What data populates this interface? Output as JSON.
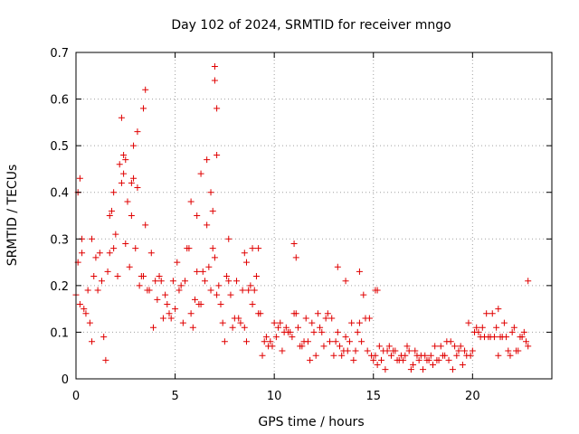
{
  "chart_data": {
    "type": "scatter",
    "title": "Day 102 of 2024, SRMTID for receiver mngo",
    "xlabel": "GPS time / hours",
    "ylabel": "SRMTID / TECUs",
    "xlim": [
      0,
      24
    ],
    "ylim": [
      0,
      0.7
    ],
    "xticks": [
      0,
      5,
      10,
      15,
      20
    ],
    "yticks": [
      0,
      0.1,
      0.2,
      0.3,
      0.4,
      0.5,
      0.6,
      0.7
    ],
    "xtick_labels": [
      "0",
      "5",
      "10",
      "15",
      "20"
    ],
    "ytick_labels": [
      "0",
      "0.1",
      "0.2",
      "0.3",
      "0.4",
      "0.5",
      "0.6",
      "0.7"
    ],
    "grid": true,
    "marker": "+",
    "color": "#e00000",
    "series": [
      {
        "name": "SRMTID",
        "x": [
          0.0,
          0.1,
          0.2,
          0.3,
          0.4,
          0.5,
          0.6,
          0.7,
          0.8,
          0.9,
          1.0,
          1.1,
          1.2,
          1.3,
          1.4,
          1.5,
          1.6,
          1.7,
          1.8,
          1.9,
          2.0,
          2.1,
          2.2,
          2.3,
          2.4,
          2.5,
          2.6,
          2.7,
          2.8,
          2.9,
          3.0,
          3.1,
          3.2,
          3.3,
          3.4,
          3.5,
          3.6,
          3.7,
          3.8,
          3.9,
          4.0,
          4.1,
          4.2,
          4.3,
          4.4,
          4.5,
          4.6,
          4.7,
          4.8,
          4.9,
          5.0,
          5.1,
          5.2,
          5.3,
          5.4,
          5.5,
          5.6,
          5.7,
          5.8,
          5.9,
          6.0,
          6.1,
          6.2,
          6.3,
          6.4,
          6.5,
          6.6,
          6.7,
          6.8,
          6.9,
          7.0,
          7.1,
          7.2,
          7.3,
          7.4,
          7.5,
          7.6,
          7.7,
          7.8,
          7.9,
          8.0,
          8.1,
          8.2,
          8.3,
          8.4,
          8.5,
          8.6,
          8.7,
          8.8,
          8.9,
          9.0,
          9.1,
          9.2,
          9.3,
          9.4,
          9.5,
          9.6,
          9.7,
          9.8,
          9.9,
          10.0,
          10.1,
          10.2,
          10.3,
          10.4,
          10.5,
          10.6,
          10.7,
          10.8,
          10.9,
          11.0,
          11.1,
          11.2,
          11.3,
          11.4,
          11.5,
          11.6,
          11.7,
          11.8,
          11.9,
          12.0,
          12.1,
          12.2,
          12.3,
          12.4,
          12.5,
          12.6,
          12.7,
          12.8,
          12.9,
          13.0,
          13.1,
          13.2,
          13.3,
          13.4,
          13.5,
          13.6,
          13.7,
          13.8,
          13.9,
          14.0,
          14.1,
          14.2,
          14.3,
          14.4,
          14.5,
          14.6,
          14.7,
          14.8,
          14.9,
          15.0,
          15.1,
          15.2,
          15.3,
          15.4,
          15.5,
          15.6,
          15.7,
          15.8,
          15.9,
          16.0,
          16.1,
          16.2,
          16.3,
          16.4,
          16.5,
          16.6,
          16.7,
          16.8,
          16.9,
          17.0,
          17.1,
          17.2,
          17.3,
          17.4,
          17.5,
          17.6,
          17.7,
          17.8,
          17.9,
          18.0,
          18.1,
          18.2,
          18.3,
          18.4,
          18.5,
          18.6,
          18.7,
          18.8,
          18.9,
          19.0,
          19.1,
          19.2,
          19.3,
          19.4,
          19.5,
          19.6,
          19.7,
          19.8,
          19.9,
          20.0,
          20.1,
          20.2,
          20.3,
          20.4,
          20.5,
          20.6,
          20.7,
          20.8,
          20.9,
          21.0,
          21.1,
          21.2,
          21.3,
          21.4,
          21.5,
          21.6,
          21.7,
          21.8,
          21.9,
          22.0,
          22.1,
          22.2,
          22.3,
          22.4,
          22.5,
          22.6,
          22.7,
          22.8,
          0.1,
          0.2,
          0.3,
          0.8,
          1.7,
          1.9,
          2.3,
          2.4,
          2.5,
          2.8,
          2.9,
          3.1,
          3.4,
          3.5,
          5.8,
          6.1,
          6.3,
          6.6,
          6.8,
          6.9,
          7.0,
          7.0,
          7.1,
          7.1,
          7.7,
          8.5,
          8.6,
          8.9,
          9.2,
          11.0,
          11.1,
          13.2,
          13.6,
          14.3,
          15.1,
          15.2,
          21.3,
          22.8
        ],
        "y": [
          0.18,
          0.25,
          0.16,
          0.27,
          0.15,
          0.14,
          0.19,
          0.12,
          0.08,
          0.22,
          0.26,
          0.19,
          0.27,
          0.21,
          0.09,
          0.04,
          0.23,
          0.27,
          0.36,
          0.28,
          0.31,
          0.22,
          0.46,
          0.42,
          0.44,
          0.29,
          0.38,
          0.24,
          0.35,
          0.43,
          0.28,
          0.41,
          0.2,
          0.22,
          0.22,
          0.33,
          0.19,
          0.19,
          0.27,
          0.11,
          0.21,
          0.17,
          0.22,
          0.21,
          0.13,
          0.18,
          0.16,
          0.14,
          0.13,
          0.21,
          0.15,
          0.25,
          0.19,
          0.2,
          0.12,
          0.21,
          0.28,
          0.28,
          0.14,
          0.11,
          0.17,
          0.23,
          0.16,
          0.16,
          0.23,
          0.21,
          0.33,
          0.24,
          0.19,
          0.36,
          0.26,
          0.18,
          0.2,
          0.16,
          0.12,
          0.08,
          0.22,
          0.21,
          0.18,
          0.11,
          0.13,
          0.21,
          0.13,
          0.12,
          0.19,
          0.11,
          0.08,
          0.19,
          0.2,
          0.16,
          0.19,
          0.22,
          0.14,
          0.14,
          0.05,
          0.08,
          0.09,
          0.07,
          0.08,
          0.07,
          0.12,
          0.09,
          0.11,
          0.12,
          0.06,
          0.1,
          0.11,
          0.1,
          0.1,
          0.09,
          0.14,
          0.14,
          0.11,
          0.07,
          0.07,
          0.08,
          0.13,
          0.08,
          0.04,
          0.12,
          0.1,
          0.05,
          0.14,
          0.11,
          0.1,
          0.07,
          0.13,
          0.14,
          0.08,
          0.13,
          0.05,
          0.08,
          0.1,
          0.07,
          0.05,
          0.06,
          0.09,
          0.06,
          0.08,
          0.12,
          0.04,
          0.06,
          0.1,
          0.12,
          0.08,
          0.18,
          0.13,
          0.06,
          0.13,
          0.05,
          0.04,
          0.05,
          0.03,
          0.07,
          0.04,
          0.06,
          0.02,
          0.06,
          0.07,
          0.05,
          0.06,
          0.06,
          0.04,
          0.04,
          0.05,
          0.04,
          0.05,
          0.07,
          0.06,
          0.02,
          0.03,
          0.06,
          0.05,
          0.04,
          0.05,
          0.02,
          0.05,
          0.04,
          0.04,
          0.05,
          0.03,
          0.07,
          0.04,
          0.04,
          0.07,
          0.05,
          0.05,
          0.08,
          0.04,
          0.08,
          0.02,
          0.07,
          0.05,
          0.06,
          0.07,
          0.03,
          0.06,
          0.05,
          0.12,
          0.05,
          0.06,
          0.1,
          0.11,
          0.1,
          0.09,
          0.11,
          0.09,
          0.14,
          0.09,
          0.09,
          0.14,
          0.09,
          0.11,
          0.05,
          0.09,
          0.09,
          0.12,
          0.09,
          0.06,
          0.05,
          0.1,
          0.11,
          0.06,
          0.06,
          0.09,
          0.09,
          0.1,
          0.08,
          0.07,
          0.4,
          0.43,
          0.3,
          0.3,
          0.35,
          0.4,
          0.56,
          0.48,
          0.47,
          0.42,
          0.5,
          0.53,
          0.58,
          0.62,
          0.38,
          0.35,
          0.44,
          0.47,
          0.4,
          0.28,
          0.67,
          0.64,
          0.58,
          0.48,
          0.3,
          0.27,
          0.25,
          0.28,
          0.28,
          0.29,
          0.26,
          0.24,
          0.21,
          0.23,
          0.19,
          0.19,
          0.15,
          0.21
        ]
      }
    ]
  }
}
